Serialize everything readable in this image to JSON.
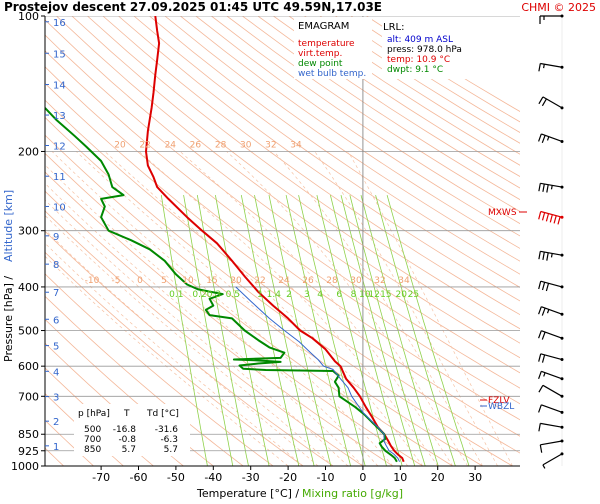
{
  "header": {
    "title": "Prostejov   descent   27.09.2025 01:45 UTC  49.59N,17.03E",
    "credit": "CHMI © 2025"
  },
  "legend": {
    "heading": "EMAGRAM",
    "items": [
      {
        "label": "temperature",
        "color": "#dd0000"
      },
      {
        "label": "virt.temp.",
        "color": "#dd0000"
      },
      {
        "label": "dew point",
        "color": "#008800"
      },
      {
        "label": "wet bulb temp.",
        "color": "#3366cc"
      }
    ]
  },
  "lrl": {
    "heading": "LRL:",
    "lines": [
      {
        "text": "alt: 409 m ASL",
        "color": "#0000cc"
      },
      {
        "text": "press: 978.0 hPa",
        "color": "#000000"
      },
      {
        "text": "temp: 10.9 °C",
        "color": "#dd0000"
      },
      {
        "text": "dwpt: 9.1 °C",
        "color": "#008800"
      }
    ]
  },
  "table": {
    "headers": [
      "p [hPa]",
      "T",
      "Td [°C]"
    ],
    "rows": [
      [
        "500",
        "-16.8",
        "-31.6"
      ],
      [
        "700",
        "-0.8",
        "-6.3"
      ],
      [
        "850",
        "5.7",
        "5.7"
      ]
    ]
  },
  "labels": {
    "mxws": "MXWS",
    "fzlv": "FZLV",
    "wbzl": "WBZL"
  },
  "chart_data": {
    "type": "line",
    "xlabel": "Temperature [°C]  /",
    "xlabel2": "Mixing ratio [g/kg]",
    "ylabel": "Pressure [hPa]  /",
    "ylabel2": "Altitude [km]",
    "xlim": [
      -85,
      42
    ],
    "ylim": [
      1000,
      100
    ],
    "y_scale": "log",
    "x_ticks": [
      -70,
      -60,
      -50,
      -40,
      -30,
      -20,
      -10,
      0,
      10,
      20,
      30
    ],
    "pressure_ticks": [
      100,
      200,
      300,
      400,
      500,
      600,
      700,
      850,
      925,
      1000
    ],
    "altitude_ticks": [
      {
        "km": 1,
        "p": 902
      },
      {
        "km": 2,
        "p": 795
      },
      {
        "km": 3,
        "p": 701
      },
      {
        "km": 4,
        "p": 616
      },
      {
        "km": 5,
        "p": 540
      },
      {
        "km": 6,
        "p": 472
      },
      {
        "km": 7,
        "p": 411
      },
      {
        "km": 8,
        "p": 356
      },
      {
        "km": 9,
        "p": 308
      },
      {
        "km": 10,
        "p": 265
      },
      {
        "km": 11,
        "p": 227
      },
      {
        "km": 12,
        "p": 194
      },
      {
        "km": 13,
        "p": 166
      },
      {
        "km": 14,
        "p": 142
      },
      {
        "km": 15,
        "p": 121
      },
      {
        "km": 16,
        "p": 103
      }
    ],
    "mixing_ratio_labels": [
      "0.1",
      "0.2",
      "0.3",
      "0.5",
      "1",
      "1.4",
      "2",
      "3",
      "4",
      "6",
      "8",
      "10",
      "12",
      "15",
      "20",
      "25"
    ],
    "dry_adiabat_labels": [
      {
        "p": 400,
        "values": [
          "-10",
          "-5",
          "0",
          "5",
          "10",
          "15",
          "20",
          "22",
          "24",
          "26",
          "28",
          "30",
          "32",
          "34"
        ]
      },
      {
        "p": 200,
        "values": [
          "20",
          "22",
          "24",
          "26",
          "28",
          "30",
          "32",
          "34"
        ]
      }
    ],
    "series": [
      {
        "name": "temperature",
        "color": "#dd0000",
        "points": [
          [
            10.9,
            978
          ],
          [
            10.5,
            960
          ],
          [
            9.5,
            945
          ],
          [
            8.4,
            925
          ],
          [
            7.4,
            900
          ],
          [
            6.8,
            880
          ],
          [
            5.7,
            850
          ],
          [
            4.0,
            820
          ],
          [
            2.5,
            780
          ],
          [
            0.8,
            740
          ],
          [
            -0.8,
            700
          ],
          [
            -2.5,
            670
          ],
          [
            -4.5,
            640
          ],
          [
            -6.0,
            600
          ],
          [
            -7.5,
            585
          ],
          [
            -10.0,
            550
          ],
          [
            -13.5,
            520
          ],
          [
            -16.8,
            500
          ],
          [
            -20.0,
            470
          ],
          [
            -24.0,
            440
          ],
          [
            -28.0,
            410
          ],
          [
            -31.5,
            380
          ],
          [
            -35.0,
            350
          ],
          [
            -39.0,
            320
          ],
          [
            -43.0,
            300
          ],
          [
            -47.0,
            280
          ],
          [
            -52.0,
            255
          ],
          [
            -55.0,
            240
          ],
          [
            -56.0,
            228
          ],
          [
            -57.5,
            215
          ],
          [
            -58.0,
            200
          ],
          [
            -57.5,
            180
          ],
          [
            -56.5,
            160
          ],
          [
            -56.0,
            148
          ],
          [
            -55.5,
            135
          ],
          [
            -55.0,
            125
          ],
          [
            -54.5,
            115
          ],
          [
            -55.0,
            108
          ],
          [
            -55.5,
            100
          ]
        ]
      },
      {
        "name": "dew point",
        "color": "#008800",
        "points": [
          [
            9.1,
            978
          ],
          [
            8.5,
            960
          ],
          [
            7.5,
            945
          ],
          [
            6.0,
            925
          ],
          [
            5.0,
            905
          ],
          [
            4.5,
            890
          ],
          [
            6.0,
            870
          ],
          [
            5.7,
            850
          ],
          [
            4.5,
            830
          ],
          [
            2.5,
            800
          ],
          [
            0.5,
            770
          ],
          [
            -2.0,
            740
          ],
          [
            -6.3,
            700
          ],
          [
            -6.5,
            670
          ],
          [
            -7.5,
            650
          ],
          [
            -6.5,
            630
          ],
          [
            -8.0,
            615
          ],
          [
            -26.0,
            612
          ],
          [
            -32.0,
            608
          ],
          [
            -33.0,
            598
          ],
          [
            -28.0,
            592
          ],
          [
            -22.0,
            587
          ],
          [
            -29.0,
            582
          ],
          [
            -34.5,
            580
          ],
          [
            -22.0,
            575
          ],
          [
            -21.0,
            560
          ],
          [
            -25.0,
            545
          ],
          [
            -28.0,
            525
          ],
          [
            -31.6,
            500
          ],
          [
            -35.0,
            470
          ],
          [
            -41.0,
            462
          ],
          [
            -42.0,
            450
          ],
          [
            -40.0,
            440
          ],
          [
            -41.0,
            425
          ],
          [
            -37.5,
            415
          ],
          [
            -44.0,
            405
          ],
          [
            -47.0,
            395
          ],
          [
            -50.0,
            375
          ],
          [
            -53.0,
            350
          ],
          [
            -57.0,
            330
          ],
          [
            -62.0,
            315
          ],
          [
            -68.0,
            300
          ],
          [
            -70.0,
            280
          ],
          [
            -69.0,
            265
          ],
          [
            -70.0,
            255
          ],
          [
            -64.0,
            250
          ],
          [
            -67.0,
            240
          ],
          [
            -68.0,
            225
          ],
          [
            -70.0,
            210
          ],
          [
            -74.0,
            195
          ],
          [
            -77.0,
            185
          ],
          [
            -82.0,
            170
          ],
          [
            -85.0,
            160
          ]
        ]
      },
      {
        "name": "wet bulb temp.",
        "color": "#3366cc",
        "points": [
          [
            9.8,
            978
          ],
          [
            9.3,
            960
          ],
          [
            8.2,
            940
          ],
          [
            7.0,
            925
          ],
          [
            6.2,
            900
          ],
          [
            5.6,
            880
          ],
          [
            5.7,
            850
          ],
          [
            4.0,
            820
          ],
          [
            2.0,
            790
          ],
          [
            0.0,
            760
          ],
          [
            -3.0,
            700
          ],
          [
            -4.0,
            670
          ],
          [
            -6.0,
            640
          ],
          [
            -8.0,
            610
          ],
          [
            -10.5,
            600
          ],
          [
            -12.0,
            580
          ],
          [
            -14.0,
            560
          ],
          [
            -17.0,
            530
          ],
          [
            -21.0,
            500
          ],
          [
            -25.0,
            470
          ],
          [
            -30.0,
            430
          ],
          [
            -34.0,
            400
          ]
        ]
      }
    ],
    "wind_barbs": [
      {
        "p": 100,
        "dir": 270,
        "kt": 15
      },
      {
        "p": 130,
        "dir": 280,
        "kt": 15
      },
      {
        "p": 160,
        "dir": 300,
        "kt": 20
      },
      {
        "p": 190,
        "dir": 290,
        "kt": 25
      },
      {
        "p": 240,
        "dir": 280,
        "kt": 35
      },
      {
        "p": 280,
        "dir": 285,
        "kt": 60
      },
      {
        "p": 340,
        "dir": 280,
        "kt": 35
      },
      {
        "p": 400,
        "dir": 285,
        "kt": 30
      },
      {
        "p": 460,
        "dir": 290,
        "kt": 25
      },
      {
        "p": 520,
        "dir": 290,
        "kt": 20
      },
      {
        "p": 580,
        "dir": 285,
        "kt": 20
      },
      {
        "p": 640,
        "dir": 290,
        "kt": 15
      },
      {
        "p": 700,
        "dir": 300,
        "kt": 10
      },
      {
        "p": 760,
        "dir": 290,
        "kt": 10
      },
      {
        "p": 820,
        "dir": 280,
        "kt": 10
      },
      {
        "p": 880,
        "dir": 260,
        "kt": 10
      },
      {
        "p": 940,
        "dir": 240,
        "kt": 5
      }
    ]
  }
}
